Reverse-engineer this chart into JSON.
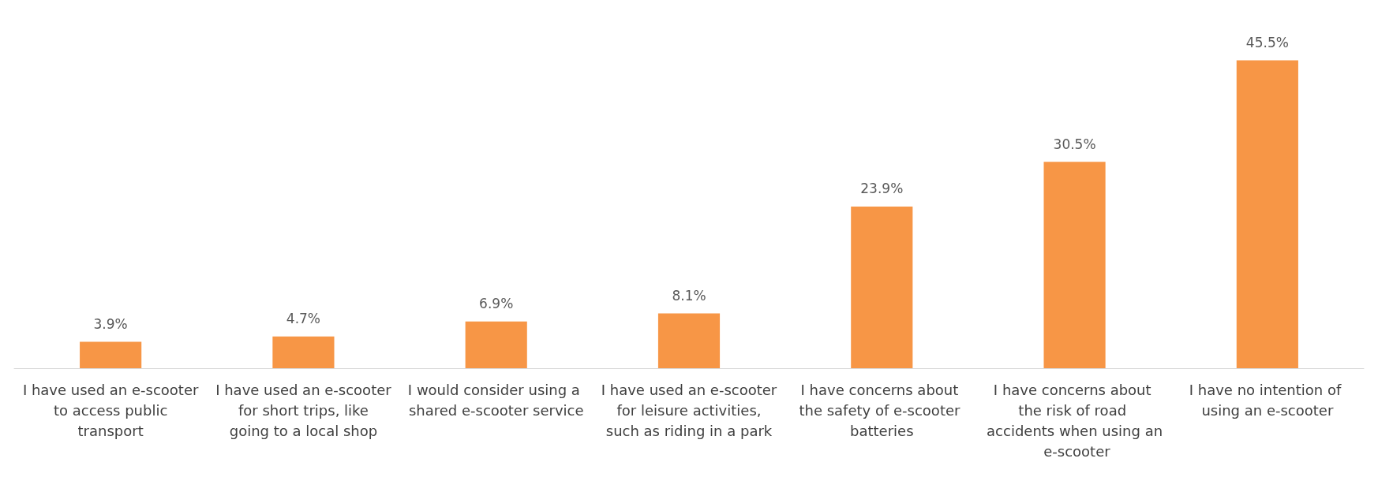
{
  "chart_data": {
    "type": "bar",
    "categories": [
      "I have used an e-scooter to access public transport",
      "I have used an e-scooter for short trips, like going to a local shop",
      "I would consider using a shared e-scooter service",
      "I have used an e-scooter for leisure activities, such as riding in a park",
      "I have concerns about the safety of e-scooter batteries",
      "I have concerns about the risk of road accidents when using an e-scooter",
      "I have no intention of using an e-scooter"
    ],
    "values": [
      3.9,
      4.7,
      6.9,
      8.1,
      23.9,
      30.5,
      45.5
    ],
    "value_labels": [
      "3.9%",
      "4.7%",
      "6.9%",
      "8.1%",
      "23.9%",
      "30.5%",
      "45.5%"
    ],
    "color": "#f79646"
  }
}
